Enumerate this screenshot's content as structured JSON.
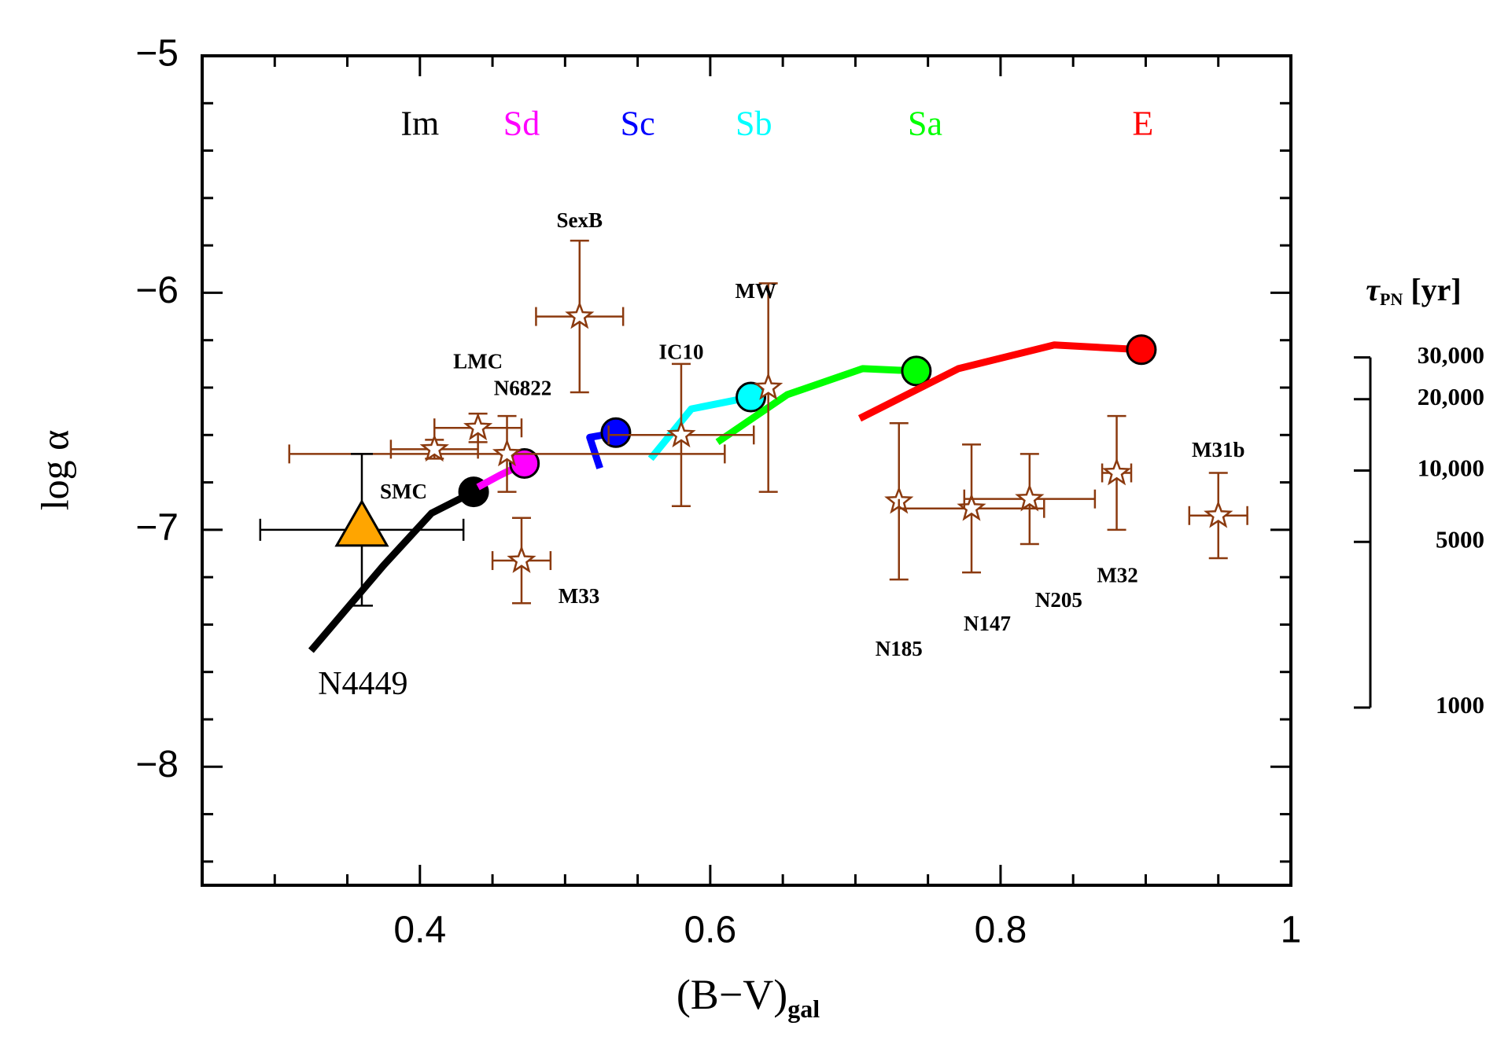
{
  "chart_data": {
    "type": "scatter",
    "xlabel": {
      "text": "(B−V)",
      "sub": "gal"
    },
    "ylabel": "log α",
    "y2label": {
      "symbol": "τ",
      "sub": "PN",
      "unit": "[yr]"
    },
    "xlim": [
      0.25,
      1
    ],
    "ylim": [
      -8.5,
      -5
    ],
    "xticks": [
      0.4,
      0.6,
      0.8,
      1
    ],
    "yticks": [
      {
        "value": -5,
        "label": "−5"
      },
      {
        "value": -6,
        "label": "−6"
      },
      {
        "value": -7,
        "label": "−7"
      },
      {
        "value": -8,
        "label": "−8"
      }
    ],
    "xticks_minor": [
      0.3,
      0.35,
      0.45,
      0.5,
      0.55,
      0.65,
      0.7,
      0.75,
      0.85,
      0.9,
      0.95
    ],
    "yticks_minor": [
      -5.2,
      -5.4,
      -5.6,
      -5.8,
      -6.2,
      -6.4,
      -6.6,
      -6.8,
      -7.2,
      -7.4,
      -7.6,
      -7.8,
      -8.2,
      -8.4
    ],
    "y2log": true,
    "y2lim": [
      178,
      562000
    ],
    "y2ticks": [
      {
        "value": 30000,
        "label": "30,000"
      },
      {
        "value": 20000,
        "label": "20,000"
      },
      {
        "value": 10000,
        "label": "10,000"
      },
      5000,
      1000
    ],
    "points_color": "#8b3a0f",
    "points": [
      {
        "name": "SexB",
        "x": 0.51,
        "y": -6.1,
        "xerr": 0.03,
        "yerr": 0.32
      },
      {
        "name": "LMC",
        "x": 0.44,
        "y": -6.57,
        "xerr": 0.03,
        "yerr": 0.06
      },
      {
        "name": "N6822",
        "x": 0.46,
        "y": -6.68,
        "xerr": 0.15,
        "yerr": 0.16
      },
      {
        "x": 0.41,
        "y": -6.66,
        "xerr": 0.03,
        "yerr": 0.04
      },
      {
        "name": "IC10",
        "x": 0.58,
        "y": -6.6,
        "xerr": 0.05,
        "yerr": 0.3
      },
      {
        "name": "M33",
        "x": 0.47,
        "y": -7.13,
        "xerr": 0.02,
        "yerr": 0.18
      },
      {
        "name": "MW",
        "x": 0.64,
        "y": -6.4,
        "xerr": null,
        "yerr": 0.44
      },
      {
        "name": "N185",
        "x": 0.73,
        "y": -6.88,
        "xerr": null,
        "yerr": 0.33
      },
      {
        "name": "N147",
        "x": 0.78,
        "y": -6.91,
        "xerr": 0.05,
        "yerr": 0.27
      },
      {
        "name": "N205",
        "x": 0.82,
        "y": -6.87,
        "xerr": 0.045,
        "yerr": 0.19
      },
      {
        "name": "M32",
        "x": 0.88,
        "y": -6.76,
        "xerr": 0.01,
        "yerr": 0.24
      },
      {
        "name": "M31b",
        "x": 0.95,
        "y": -6.94,
        "xerr": 0.02,
        "yerr": 0.18
      }
    ],
    "smc": {
      "name": "SMC",
      "x": 0.36,
      "y": -7.0,
      "xerr": 0.07,
      "yerr": 0.32,
      "color": "#ffa500"
    },
    "model_label": "N4449",
    "tracks": [
      {
        "name": "Im",
        "color": "#000000",
        "x": [
          0.325,
          0.375,
          0.408,
          0.437
        ],
        "y": [
          -7.51,
          -7.15,
          -6.93,
          -6.84
        ]
      },
      {
        "name": "Sd",
        "color": "#ff00ff",
        "x": [
          0.44,
          0.455,
          0.472
        ],
        "y": [
          -6.82,
          -6.77,
          -6.72
        ]
      },
      {
        "name": "Sc",
        "color": "#0000ff",
        "x": [
          0.524,
          0.517,
          0.535
        ],
        "y": [
          -6.74,
          -6.61,
          -6.59
        ]
      },
      {
        "name": "Sb",
        "color": "#00ffff",
        "x": [
          0.559,
          0.587,
          0.628
        ],
        "y": [
          -6.7,
          -6.49,
          -6.44
        ]
      },
      {
        "name": "Sa",
        "color": "#00ff00",
        "x": [
          0.605,
          0.653,
          0.705,
          0.742
        ],
        "y": [
          -6.63,
          -6.43,
          -6.32,
          -6.33
        ]
      },
      {
        "name": "E",
        "color": "#ff0000",
        "x": [
          0.703,
          0.771,
          0.837,
          0.897
        ],
        "y": [
          -6.53,
          -6.32,
          -6.22,
          -6.24
        ]
      }
    ]
  }
}
